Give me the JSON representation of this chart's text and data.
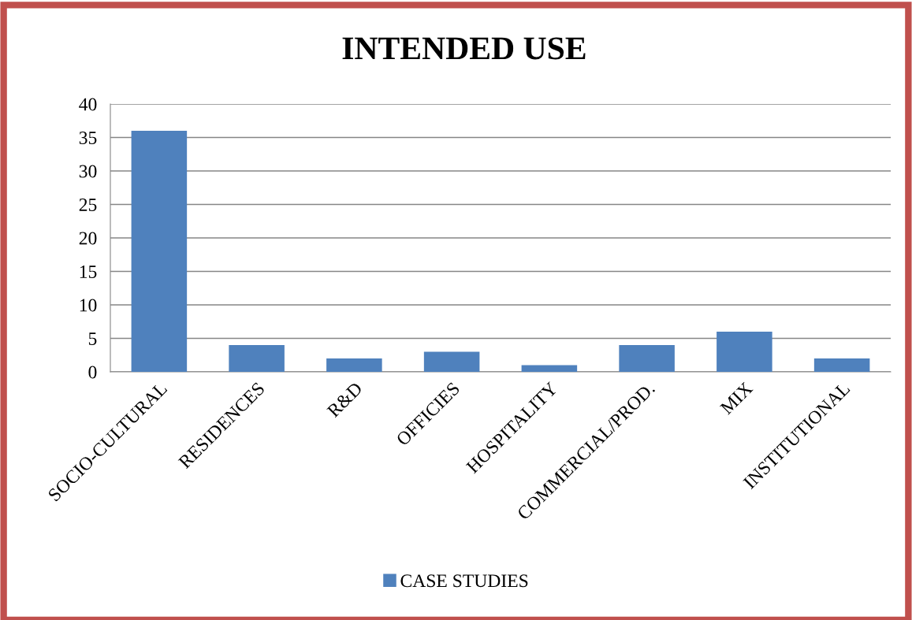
{
  "chart_data": {
    "type": "bar",
    "title": "INTENDED USE",
    "categories": [
      "SOCIO-CULTURAL",
      "RESIDENCES",
      "R&D",
      "OFFICIES",
      "HOSPITALITY",
      "COMMERCIAL/PROD.",
      "MIX",
      "INSTITUTIONAL"
    ],
    "series": [
      {
        "name": "CASE STUDIES",
        "color": "#4f81bd",
        "values": [
          36,
          4,
          2,
          3,
          1,
          4,
          6,
          2
        ]
      }
    ],
    "ylim": [
      0,
      40
    ],
    "yticks": [
      0,
      5,
      10,
      15,
      20,
      25,
      30,
      35,
      40
    ],
    "grid": "y",
    "legend": "bottom"
  }
}
